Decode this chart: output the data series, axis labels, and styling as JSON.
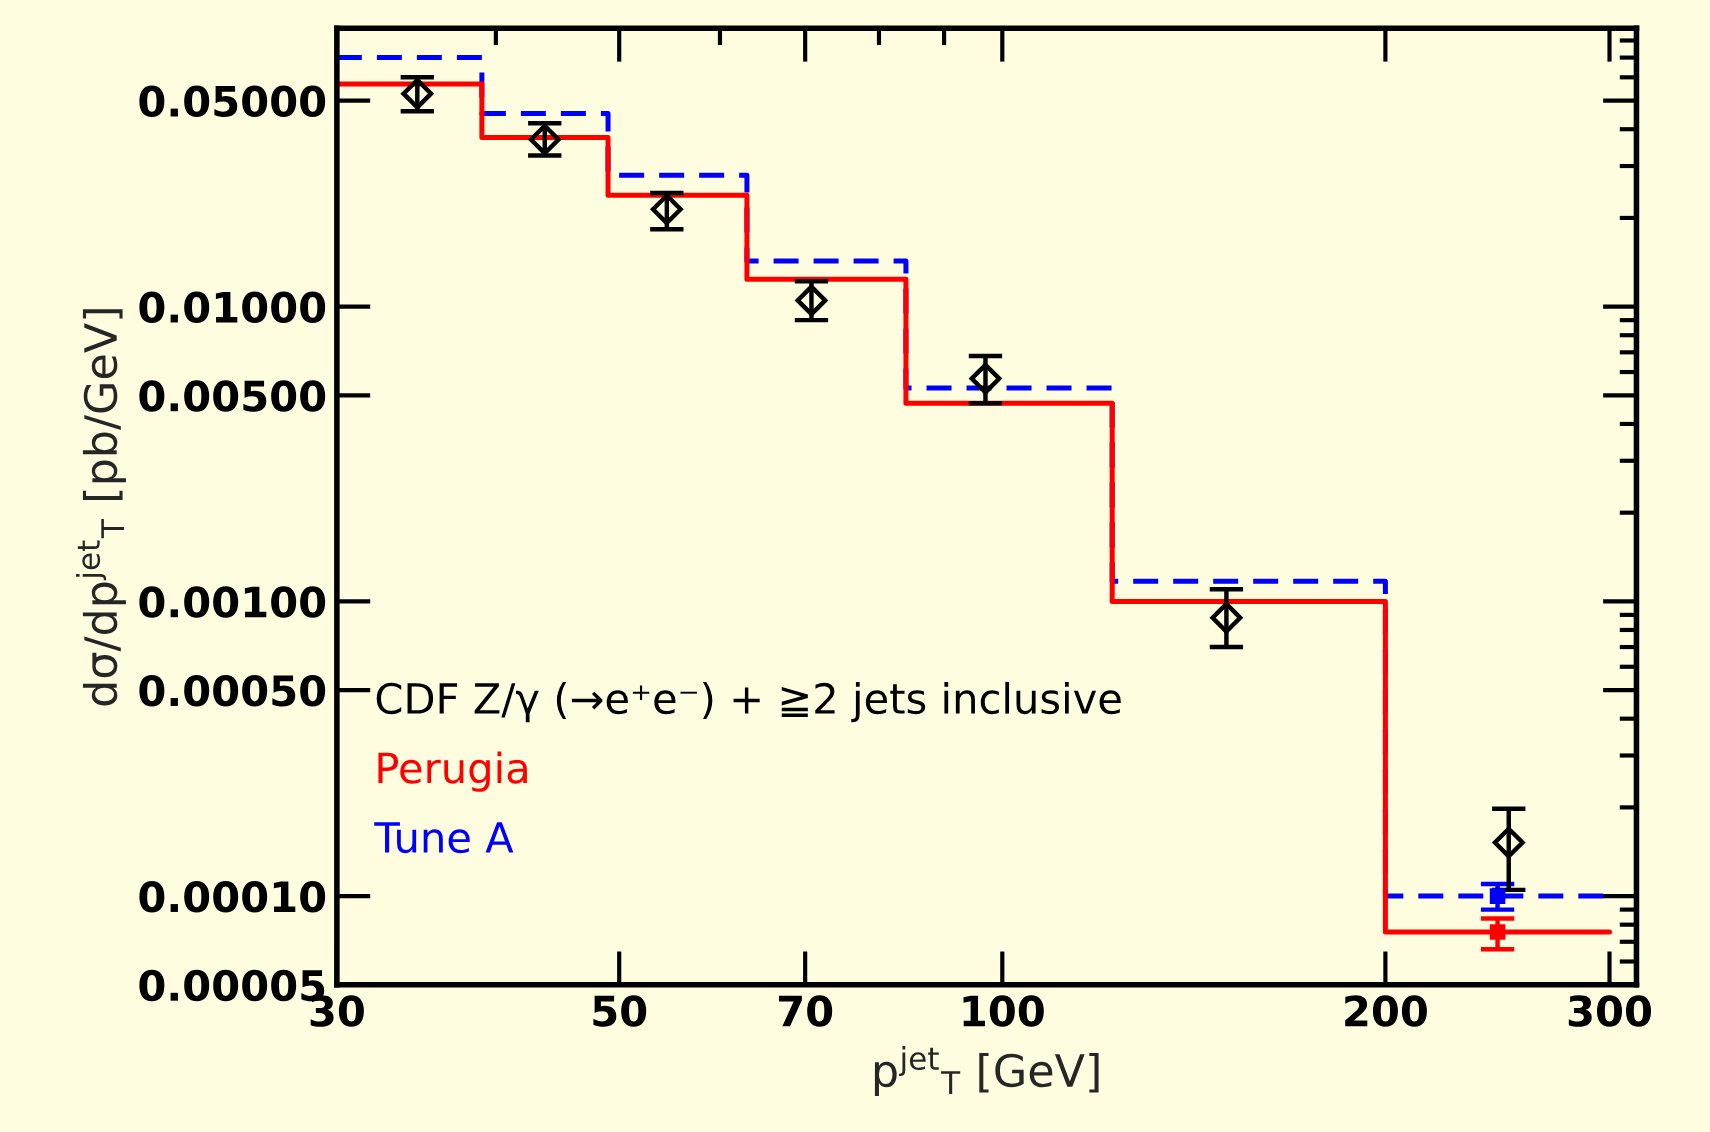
{
  "chart_data": {
    "type": "histogram",
    "xlabel": "p$^{jet}$$_{T}$ [GeV]",
    "ylabel": "dσ/dp$^{jet}$$_{T}$ [pb/GeV]",
    "bins": [
      30,
      39,
      49,
      63,
      84,
      122,
      200,
      300
    ],
    "series": [
      {
        "name": "CDF Z/γ (→e⁺e⁻) + ≧2 jets inclusive",
        "type": "scatter",
        "color": "#000000",
        "marker": "diamond",
        "x": [
          34.7,
          43.7,
          54.5,
          70.8,
          97,
          150,
          250
        ],
        "values": [
          0.0528,
          0.0369,
          0.0214,
          0.0105,
          0.0057,
          0.00088,
          0.000152
        ],
        "errors": [
          [
            0.046,
            0.06
          ],
          [
            0.0326,
            0.0419
          ],
          [
            0.0183,
            0.0243
          ],
          [
            0.009,
            0.0122
          ],
          [
            0.0047,
            0.0068
          ],
          [
            0.0007,
            0.0011
          ],
          [
            0.000105,
            0.000198
          ]
        ]
      },
      {
        "name": "Perugia",
        "color": "#ff0000",
        "line_style": "solid",
        "values": [
          0.057,
          0.0375,
          0.0239,
          0.0124,
          0.0047,
          0.001,
          7.55e-05
        ]
      },
      {
        "name": "Tune A",
        "color": "#0000ff",
        "line_style": "dashed",
        "values": [
          0.07,
          0.0452,
          0.0279,
          0.0143,
          0.0053,
          0.00117,
          0.0001
        ]
      },
      {
        "type": "scatter",
        "color": "#ff0000",
        "marker": "square",
        "x": [
          245
        ],
        "values": [
          7.55e-05
        ],
        "errors": [
          [
            6.6e-05,
            8.4e-05
          ]
        ]
      },
      {
        "type": "scatter",
        "color": "#0000ff",
        "marker": "square",
        "x": [
          245
        ],
        "values": [
          0.0001
        ],
        "errors": [
          [
            9e-05,
            0.00011
          ]
        ]
      }
    ],
    "log": "xy",
    "xlim": [
      30,
      315
    ],
    "ylim": [
      5e-05,
      0.088
    ],
    "xticks": [
      30,
      50,
      70,
      100,
      200,
      300
    ],
    "yticks": [
      {
        "value": 0.05,
        "label": "0.05000"
      },
      {
        "value": 0.01,
        "label": "0.01000"
      },
      {
        "value": 0.005,
        "label": "0.00500"
      },
      {
        "value": 0.001,
        "label": "0.00100"
      },
      {
        "value": 0.0005,
        "label": "0.00050"
      },
      {
        "value": 0.0001,
        "label": "0.00010"
      },
      {
        "value": 5e-05,
        "label": "0.00005"
      }
    ],
    "legend": "bottom left",
    "grid": false
  }
}
